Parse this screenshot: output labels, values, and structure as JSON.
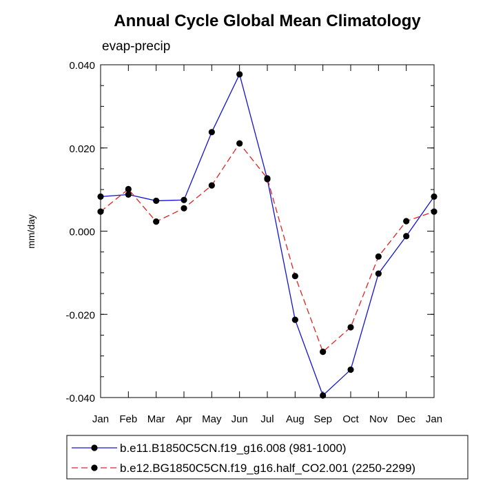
{
  "chart_data": {
    "type": "line",
    "title": "Annual Cycle Global Mean Climatology",
    "subtitle": "evap-precip",
    "xlabel": "",
    "ylabel": "mm/day",
    "categories": [
      "Jan",
      "Feb",
      "Mar",
      "Apr",
      "May",
      "Jun",
      "Jul",
      "Aug",
      "Sep",
      "Oct",
      "Nov",
      "Dec",
      "Jan"
    ],
    "ylim": [
      -0.04,
      0.04
    ],
    "yticks": [
      -0.04,
      -0.02,
      0.0,
      0.02,
      0.04
    ],
    "ytick_labels": [
      "-0.040",
      "-0.020",
      "0.000",
      "0.020",
      "0.040"
    ],
    "grid": false,
    "legend_position": "bottom",
    "series": [
      {
        "name": "b.e11.B1850C5CN.f19_g16.008 (981-1000)",
        "color": "#1010d8",
        "dash": "solid",
        "values": [
          0.0083,
          0.0088,
          0.0073,
          0.0075,
          0.0238,
          0.0377,
          0.0125,
          -0.0213,
          -0.0395,
          -0.0333,
          -0.0102,
          -0.0012,
          0.0083
        ]
      },
      {
        "name": "b.e12.BG1850C5CN.f19_g16.half_CO2.001 (2250-2299)",
        "color": "#e02020",
        "dash": "dashed",
        "values": [
          0.0047,
          0.0101,
          0.0023,
          0.0055,
          0.011,
          0.0211,
          0.0127,
          -0.0108,
          -0.029,
          -0.0231,
          -0.0061,
          0.0024,
          0.0047
        ]
      }
    ]
  }
}
